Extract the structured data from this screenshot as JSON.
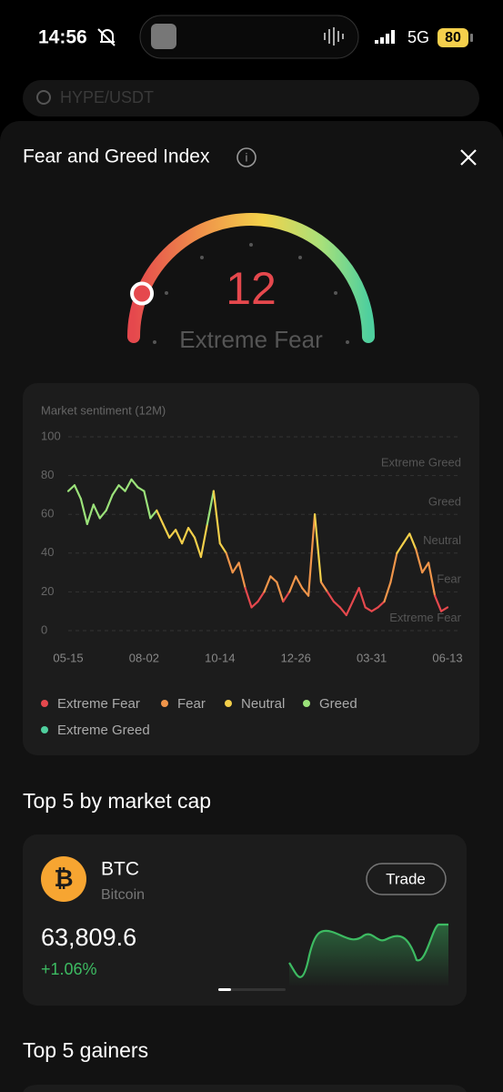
{
  "status_bar": {
    "time": "14:56",
    "network": "5G",
    "battery": "80"
  },
  "search": {
    "placeholder": "HYPE/USDT"
  },
  "panel": {
    "title": "Fear and Greed Index"
  },
  "gauge": {
    "value": 12,
    "label": "Extreme Fear",
    "range": [
      0,
      100
    ]
  },
  "chart_data": {
    "type": "line",
    "title": "Market sentiment (12M)",
    "categories": [
      "05-15",
      null,
      null,
      null,
      null,
      null,
      null,
      null,
      null,
      null,
      null,
      null,
      "08-02",
      null,
      null,
      null,
      null,
      null,
      null,
      null,
      null,
      null,
      null,
      null,
      "10-14",
      null,
      null,
      null,
      null,
      null,
      null,
      null,
      null,
      null,
      null,
      null,
      "12-26",
      null,
      null,
      null,
      null,
      null,
      null,
      null,
      null,
      null,
      null,
      null,
      "03-31",
      null,
      null,
      null,
      null,
      null,
      null,
      null,
      null,
      null,
      null,
      null,
      "06-13"
    ],
    "values": [
      72,
      75,
      68,
      55,
      65,
      58,
      62,
      70,
      75,
      72,
      78,
      74,
      72,
      58,
      62,
      55,
      48,
      52,
      45,
      53,
      48,
      38,
      55,
      72,
      45,
      40,
      30,
      35,
      22,
      12,
      15,
      20,
      28,
      25,
      15,
      20,
      28,
      22,
      18,
      60,
      25,
      20,
      15,
      12,
      8,
      15,
      22,
      12,
      10,
      12,
      15,
      25,
      40,
      45,
      50,
      42,
      30,
      35,
      18,
      10,
      12
    ],
    "ylim": [
      0,
      100
    ],
    "yticks": [
      0,
      20,
      40,
      60,
      80,
      100
    ],
    "grid": true,
    "zones": [
      {
        "name": "Extreme Fear",
        "color": "#e5484d"
      },
      {
        "name": "Fear",
        "color": "#f0954a"
      },
      {
        "name": "Neutral",
        "color": "#f3cf4a"
      },
      {
        "name": "Greed",
        "color": "#9be27a"
      },
      {
        "name": "Extreme Greed",
        "color": "#4fcf9e"
      }
    ]
  },
  "market_cap": {
    "title": "Top 5 by market cap",
    "coin": {
      "symbol": "BTC",
      "name": "Bitcoin",
      "action": "Trade",
      "price": "63,809.6",
      "change": "+1.06%"
    }
  },
  "gainers": {
    "title": "Top 5 gainers"
  }
}
